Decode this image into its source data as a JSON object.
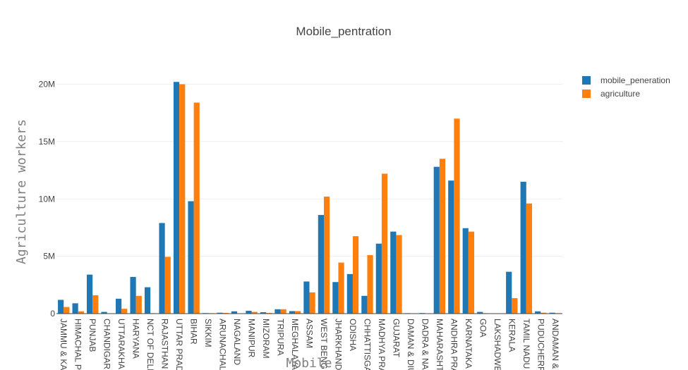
{
  "chart_data": {
    "type": "bar",
    "title": "Mobile_pentration",
    "xlabel": "Mobile",
    "ylabel": "Agriculture workers",
    "ylim": [
      0,
      21500000
    ],
    "yticks": [
      0,
      5000000,
      10000000,
      15000000,
      20000000
    ],
    "ytick_labels": [
      "0",
      "5M",
      "10M",
      "15M",
      "20M"
    ],
    "grid": true,
    "legend_position": "top-right",
    "categories": [
      "JAMMU & KASHMIR",
      "HIMACHAL PRADESH",
      "PUNJAB",
      "CHANDIGARH",
      "UTTARAKHAND",
      "HARYANA",
      "NCT OF DELHI",
      "RAJASTHAN",
      "UTTAR PRADESH",
      "BIHAR",
      "SIKKIM",
      "ARUNACHAL PRADESH",
      "NAGALAND",
      "MANIPUR",
      "MIZORAM",
      "TRIPURA",
      "MEGHALAYA",
      "ASSAM",
      "WEST BENGAL",
      "JHARKHAND",
      "ODISHA",
      "CHHATTISGARH",
      "MADHYA PRADESH",
      "GUJARAT",
      "DAMAN & DIU",
      "DADRA & NAGAR HAVELI",
      "MAHARASHTRA",
      "ANDHRA PRADESH",
      "KARNATAKA",
      "GOA",
      "LAKSHADWEEP",
      "KERALA",
      "TAMIL NADU",
      "PUDUCHERRY",
      "ANDAMAN & NICOBAR ISLANDS"
    ],
    "tick_labels": [
      "JAMMU & KA",
      "HIMACHAL P",
      "PUNJAB",
      "CHANDIGAR",
      "UTTARAKHA",
      "HARYANA",
      "NCT OF DELI",
      "RAJASTHAN",
      "UTTAR PRAD",
      "BIHAR",
      "SIKKIM",
      "ARUNACHAL",
      "NAGALAND",
      "MANIPUR",
      "MIZORAM",
      "TRIPURA",
      "MEGHALAYA",
      "ASSAM",
      "WEST BENG",
      "JHARKHAND",
      "ODISHA",
      "CHHATTISGA",
      "MADHYA PRA",
      "GUJARAT",
      "DAMAN & DIU",
      "DADRA & NA",
      "MAHARASHT",
      "ANDHRA PRA",
      "KARNATAKA",
      "GOA",
      "LAKSHADWE",
      "KERALA",
      "TAMIL NADU",
      "PUDUCHERR",
      "ANDAMAN &"
    ],
    "series": [
      {
        "name": "mobile_peneration",
        "color": "#1f77b4",
        "values": [
          1200000,
          900000,
          3400000,
          150000,
          1300000,
          3200000,
          2300000,
          7900000,
          20200000,
          9800000,
          50000,
          80000,
          200000,
          250000,
          120000,
          380000,
          220000,
          2800000,
          8600000,
          2750000,
          3450000,
          1550000,
          6100000,
          7150000,
          40000,
          50000,
          12800000,
          11600000,
          7450000,
          150000,
          10000,
          3650000,
          11500000,
          200000,
          80000
        ]
      },
      {
        "name": "agriculture",
        "color": "#ff7f0e",
        "values": [
          580000,
          200000,
          1600000,
          10000,
          420000,
          1550000,
          40000,
          4950000,
          20000000,
          18400000,
          40000,
          60000,
          30000,
          150000,
          60000,
          380000,
          220000,
          1850000,
          10200000,
          4450000,
          6750000,
          5100000,
          12200000,
          6850000,
          10000,
          20000,
          13500000,
          17000000,
          7150000,
          40000,
          5000,
          1350000,
          9600000,
          80000,
          40000
        ]
      }
    ]
  }
}
